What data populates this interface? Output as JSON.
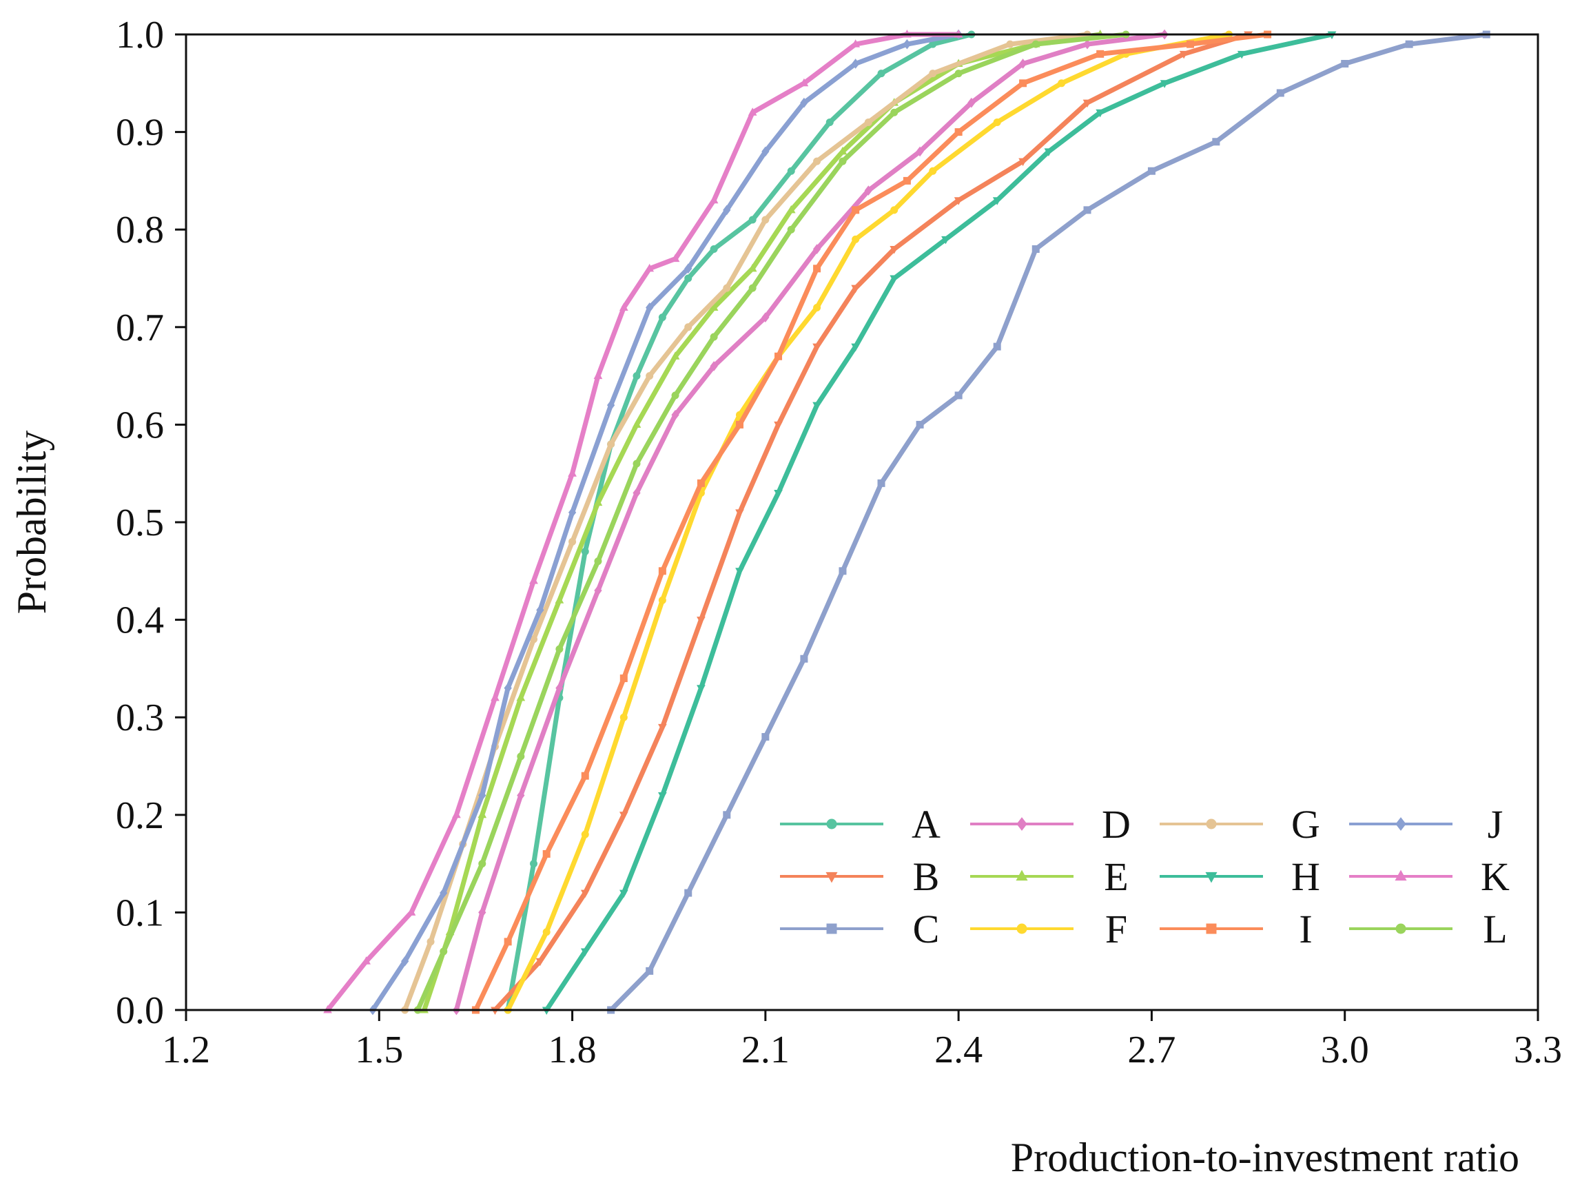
{
  "chart_data": {
    "type": "line",
    "title": "",
    "xlabel": "Production-to-investment ratio",
    "ylabel": "Probability",
    "xlim": [
      1.2,
      3.3
    ],
    "ylim": [
      0.0,
      1.0
    ],
    "x_ticks": [
      "1.2",
      "1.5",
      "1.8",
      "2.1",
      "2.4",
      "2.7",
      "3.0",
      "3.3"
    ],
    "y_ticks": [
      "0.0",
      "0.1",
      "0.2",
      "0.3",
      "0.4",
      "0.5",
      "0.6",
      "0.7",
      "0.8",
      "0.9",
      "1.0"
    ],
    "grid": false,
    "legend_position": "bottom-right",
    "series": [
      {
        "name": "A",
        "color": "#57c4a0",
        "marker": "circle",
        "x": [
          1.7,
          1.74,
          1.78,
          1.82,
          1.86,
          1.9,
          1.94,
          1.98,
          2.02,
          2.08,
          2.14,
          2.2,
          2.28,
          2.36,
          2.42
        ],
        "y": [
          0.0,
          0.15,
          0.32,
          0.47,
          0.58,
          0.65,
          0.71,
          0.75,
          0.78,
          0.81,
          0.86,
          0.91,
          0.96,
          0.99,
          1.0
        ]
      },
      {
        "name": "B",
        "color": "#f4835a",
        "marker": "triangle-down",
        "x": [
          1.68,
          1.75,
          1.82,
          1.88,
          1.94,
          2.0,
          2.06,
          2.12,
          2.18,
          2.24,
          2.3,
          2.4,
          2.5,
          2.6,
          2.75,
          2.85
        ],
        "y": [
          0.0,
          0.05,
          0.12,
          0.2,
          0.29,
          0.4,
          0.51,
          0.6,
          0.68,
          0.74,
          0.78,
          0.83,
          0.87,
          0.93,
          0.98,
          1.0
        ]
      },
      {
        "name": "C",
        "color": "#8ea0cc",
        "marker": "square",
        "x": [
          1.86,
          1.92,
          1.98,
          2.04,
          2.1,
          2.16,
          2.22,
          2.28,
          2.34,
          2.4,
          2.46,
          2.52,
          2.6,
          2.7,
          2.8,
          2.9,
          3.0,
          3.1,
          3.22
        ],
        "y": [
          0.0,
          0.04,
          0.12,
          0.2,
          0.28,
          0.36,
          0.45,
          0.54,
          0.6,
          0.63,
          0.68,
          0.78,
          0.82,
          0.86,
          0.89,
          0.94,
          0.97,
          0.99,
          1.0
        ]
      },
      {
        "name": "D",
        "color": "#e07fc4",
        "marker": "diamond",
        "x": [
          1.62,
          1.66,
          1.72,
          1.78,
          1.84,
          1.9,
          1.96,
          2.02,
          2.1,
          2.18,
          2.26,
          2.34,
          2.42,
          2.5,
          2.6,
          2.72
        ],
        "y": [
          0.0,
          0.1,
          0.22,
          0.33,
          0.43,
          0.53,
          0.61,
          0.66,
          0.71,
          0.78,
          0.84,
          0.88,
          0.93,
          0.97,
          0.99,
          1.0
        ]
      },
      {
        "name": "E",
        "color": "#a6d854",
        "marker": "triangle-up",
        "x": [
          1.57,
          1.61,
          1.66,
          1.72,
          1.78,
          1.84,
          1.9,
          1.96,
          2.02,
          2.08,
          2.14,
          2.22,
          2.3,
          2.4,
          2.52,
          2.62
        ],
        "y": [
          0.0,
          0.08,
          0.2,
          0.32,
          0.42,
          0.52,
          0.6,
          0.67,
          0.72,
          0.76,
          0.82,
          0.88,
          0.93,
          0.97,
          0.99,
          1.0
        ]
      },
      {
        "name": "F",
        "color": "#ffd92f",
        "marker": "circle",
        "x": [
          1.7,
          1.76,
          1.82,
          1.88,
          1.94,
          2.0,
          2.06,
          2.12,
          2.18,
          2.24,
          2.3,
          2.36,
          2.46,
          2.56,
          2.66,
          2.82
        ],
        "y": [
          0.0,
          0.08,
          0.18,
          0.3,
          0.42,
          0.53,
          0.61,
          0.67,
          0.72,
          0.79,
          0.82,
          0.86,
          0.91,
          0.95,
          0.98,
          1.0
        ]
      },
      {
        "name": "G",
        "color": "#e5c494",
        "marker": "circle",
        "x": [
          1.54,
          1.58,
          1.63,
          1.68,
          1.74,
          1.8,
          1.86,
          1.92,
          1.98,
          2.04,
          2.1,
          2.18,
          2.26,
          2.36,
          2.48,
          2.6
        ],
        "y": [
          0.0,
          0.07,
          0.17,
          0.27,
          0.38,
          0.48,
          0.58,
          0.65,
          0.7,
          0.74,
          0.81,
          0.87,
          0.91,
          0.96,
          0.99,
          1.0
        ]
      },
      {
        "name": "H",
        "color": "#3dbd9a",
        "marker": "triangle-down",
        "x": [
          1.76,
          1.82,
          1.88,
          1.94,
          2.0,
          2.06,
          2.12,
          2.18,
          2.24,
          2.3,
          2.38,
          2.46,
          2.54,
          2.62,
          2.72,
          2.84,
          2.98
        ],
        "y": [
          0.0,
          0.06,
          0.12,
          0.22,
          0.33,
          0.45,
          0.53,
          0.62,
          0.68,
          0.75,
          0.79,
          0.83,
          0.88,
          0.92,
          0.95,
          0.98,
          1.0
        ]
      },
      {
        "name": "I",
        "color": "#fb8c5a",
        "marker": "square",
        "x": [
          1.65,
          1.7,
          1.76,
          1.82,
          1.88,
          1.94,
          2.0,
          2.06,
          2.12,
          2.18,
          2.24,
          2.32,
          2.4,
          2.5,
          2.62,
          2.76,
          2.88
        ],
        "y": [
          0.0,
          0.07,
          0.16,
          0.24,
          0.34,
          0.45,
          0.54,
          0.6,
          0.67,
          0.76,
          0.82,
          0.85,
          0.9,
          0.95,
          0.98,
          0.99,
          1.0
        ]
      },
      {
        "name": "J",
        "color": "#8aa0d2",
        "marker": "diamond",
        "x": [
          1.49,
          1.54,
          1.6,
          1.66,
          1.7,
          1.75,
          1.8,
          1.86,
          1.92,
          1.98,
          2.04,
          2.1,
          2.16,
          2.24,
          2.32,
          2.4
        ],
        "y": [
          0.0,
          0.05,
          0.12,
          0.22,
          0.33,
          0.41,
          0.51,
          0.62,
          0.72,
          0.76,
          0.82,
          0.88,
          0.93,
          0.97,
          0.99,
          1.0
        ]
      },
      {
        "name": "K",
        "color": "#e57fc7",
        "marker": "triangle-up",
        "x": [
          1.42,
          1.48,
          1.55,
          1.62,
          1.68,
          1.74,
          1.8,
          1.84,
          1.88,
          1.92,
          1.96,
          2.02,
          2.08,
          2.16,
          2.24,
          2.32,
          2.4
        ],
        "y": [
          0.0,
          0.05,
          0.1,
          0.2,
          0.32,
          0.44,
          0.55,
          0.65,
          0.72,
          0.76,
          0.77,
          0.83,
          0.92,
          0.95,
          0.99,
          1.0,
          1.0
        ]
      },
      {
        "name": "L",
        "color": "#9ad45c",
        "marker": "circle",
        "x": [
          1.56,
          1.6,
          1.66,
          1.72,
          1.78,
          1.84,
          1.9,
          1.96,
          2.02,
          2.08,
          2.14,
          2.22,
          2.3,
          2.4,
          2.52,
          2.66
        ],
        "y": [
          0.0,
          0.06,
          0.15,
          0.26,
          0.37,
          0.46,
          0.56,
          0.63,
          0.69,
          0.74,
          0.8,
          0.87,
          0.92,
          0.96,
          0.99,
          1.0
        ]
      }
    ]
  }
}
